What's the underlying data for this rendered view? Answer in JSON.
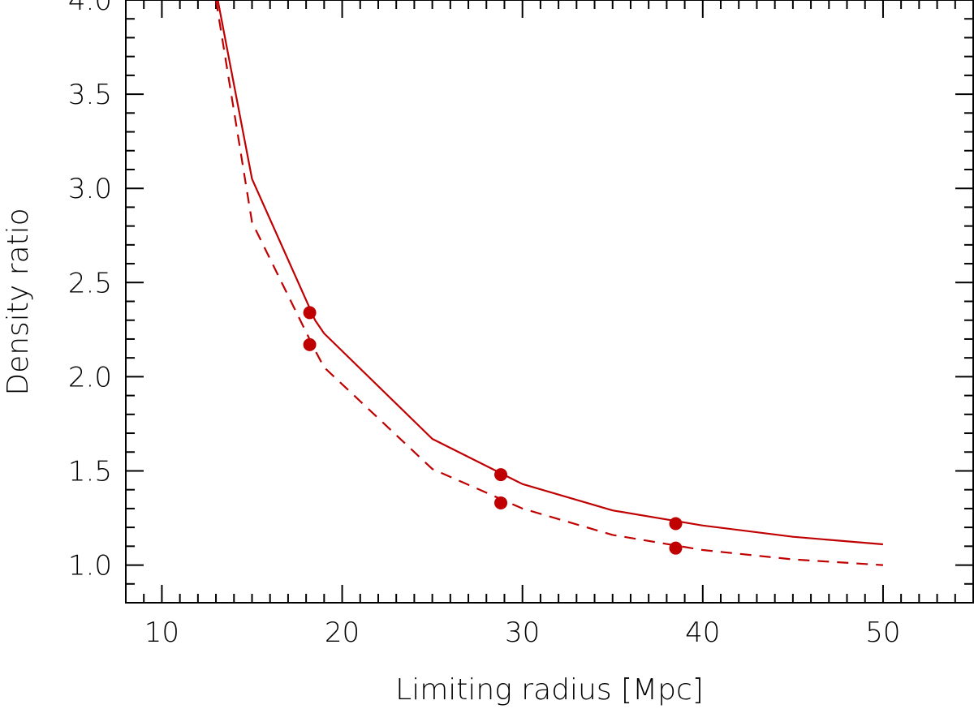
{
  "chart_data": {
    "type": "line",
    "title": "",
    "xlabel": "Limiting radius [Mpc]",
    "ylabel": "Density ratio",
    "xlim": [
      8,
      55
    ],
    "ylim": [
      0.8,
      4.0
    ],
    "xticks": [
      10,
      20,
      30,
      40,
      50
    ],
    "xtick_labels": [
      "10",
      "20",
      "30",
      "40",
      "50"
    ],
    "x_minor_step": 1,
    "yticks": [
      1.0,
      1.5,
      2.0,
      2.5,
      3.0,
      3.5,
      4.0
    ],
    "ytick_labels": [
      "1.0",
      "1.5",
      "2.0",
      "2.5",
      "3.0",
      "3.5",
      "4.0"
    ],
    "y_minor_step": 0.1,
    "grid": false,
    "color": "#c00000",
    "series": [
      {
        "style": "solid",
        "x": [
          13.0,
          15.0,
          18.5,
          19.0,
          25.0,
          30.0,
          35.0,
          40.0,
          45.0,
          50.0
        ],
        "y": [
          4.05,
          3.05,
          2.3,
          2.23,
          1.67,
          1.43,
          1.29,
          1.21,
          1.15,
          1.11
        ]
      },
      {
        "style": "dashed",
        "x": [
          13.0,
          15.0,
          18.5,
          19.0,
          25.0,
          30.0,
          35.0,
          40.0,
          45.0,
          50.0
        ],
        "y": [
          4.0,
          2.82,
          2.14,
          2.05,
          1.51,
          1.3,
          1.16,
          1.08,
          1.03,
          1.0
        ]
      }
    ],
    "points": [
      {
        "x": 18.2,
        "y": 2.34
      },
      {
        "x": 18.2,
        "y": 2.17
      },
      {
        "x": 28.8,
        "y": 1.48
      },
      {
        "x": 28.8,
        "y": 1.33
      },
      {
        "x": 38.5,
        "y": 1.22
      },
      {
        "x": 38.5,
        "y": 1.09
      }
    ]
  }
}
